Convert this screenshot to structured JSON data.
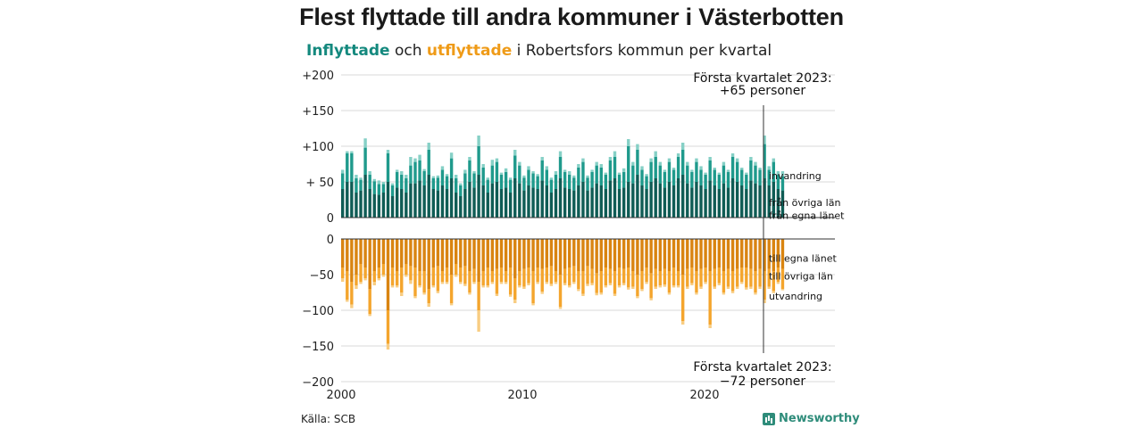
{
  "title": "Flest flyttade till andra kommuner i Västerbotten",
  "subtitle": {
    "in": "Inflyttade",
    "and": "och",
    "out": "utflyttade",
    "rest": "i Robertsfors kommun per kvartal"
  },
  "source": "Källa: SCB",
  "brand": "Newsworthy",
  "colors": {
    "in_same_county": "#0f5c55",
    "in_other_county": "#1f9a8c",
    "in_immigration": "#86d0c6",
    "out_same_county": "#d98411",
    "out_other_county": "#f4a52d",
    "out_emigration": "#f8cd82",
    "grid": "#d8d8d8",
    "axis": "#333333"
  },
  "chart_data": {
    "type": "bar",
    "stacked": true,
    "x_start": "2000 Q1",
    "x_end": "2023 Q1",
    "x_ticks": [
      "2000",
      "2010",
      "2020"
    ],
    "top": {
      "ylim": [
        0,
        200
      ],
      "y_ticks": [
        "0",
        "+ 50",
        "+100",
        "+150",
        "+200"
      ],
      "series": [
        {
          "name": "från egna länet",
          "values": [
            40,
            50,
            50,
            35,
            38,
            60,
            40,
            33,
            32,
            35,
            50,
            30,
            42,
            40,
            35,
            48,
            48,
            52,
            45,
            60,
            40,
            38,
            45,
            40,
            55,
            35,
            30,
            40,
            50,
            42,
            60,
            45,
            35,
            48,
            50,
            40,
            42,
            35,
            55,
            48,
            38,
            45,
            42,
            40,
            52,
            45,
            35,
            40,
            55,
            42,
            40,
            38,
            45,
            50,
            38,
            42,
            48,
            45,
            40,
            52,
            55,
            40,
            42,
            50,
            48,
            60,
            45,
            40,
            50,
            55,
            48,
            42,
            50,
            45,
            55,
            60,
            48,
            42,
            50,
            45,
            40,
            52,
            45,
            40,
            48,
            42,
            55,
            50,
            45,
            40,
            52,
            48,
            45,
            55,
            45,
            50,
            40,
            38
          ]
        },
        {
          "name": "från övriga län",
          "values": [
            22,
            40,
            40,
            20,
            15,
            38,
            20,
            18,
            15,
            12,
            40,
            15,
            22,
            20,
            20,
            25,
            30,
            28,
            20,
            35,
            15,
            18,
            22,
            18,
            28,
            20,
            15,
            22,
            30,
            20,
            40,
            25,
            18,
            25,
            28,
            20,
            22,
            18,
            32,
            25,
            18,
            22,
            20,
            18,
            28,
            22,
            18,
            20,
            30,
            22,
            20,
            18,
            25,
            28,
            18,
            22,
            25,
            25,
            20,
            28,
            30,
            20,
            22,
            50,
            25,
            35,
            22,
            18,
            28,
            30,
            25,
            22,
            28,
            22,
            30,
            35,
            25,
            22,
            28,
            22,
            20,
            28,
            22,
            20,
            25,
            22,
            30,
            28,
            22,
            20,
            28,
            25,
            22,
            48,
            22,
            28,
            20,
            20
          ]
        },
        {
          "name": "invandring",
          "values": [
            5,
            3,
            3,
            5,
            3,
            13,
            5,
            3,
            5,
            3,
            5,
            3,
            3,
            5,
            5,
            12,
            5,
            8,
            3,
            10,
            3,
            3,
            5,
            3,
            8,
            5,
            3,
            5,
            5,
            3,
            15,
            5,
            3,
            8,
            5,
            3,
            5,
            3,
            8,
            5,
            3,
            5,
            3,
            3,
            5,
            5,
            3,
            5,
            8,
            3,
            5,
            3,
            5,
            5,
            3,
            3,
            5,
            5,
            3,
            5,
            8,
            3,
            5,
            10,
            5,
            8,
            5,
            3,
            5,
            8,
            5,
            3,
            5,
            3,
            5,
            10,
            5,
            3,
            5,
            5,
            3,
            5,
            3,
            3,
            5,
            3,
            5,
            5,
            3,
            3,
            5,
            5,
            3,
            12,
            5,
            5,
            5,
            7
          ]
        }
      ],
      "labels": [
        {
          "text": "invandring",
          "value": 59
        },
        {
          "text": "från övriga län",
          "value": 21
        },
        {
          "text": "från egna länet",
          "value": 3
        }
      ]
    },
    "bottom": {
      "ylim": [
        -200,
        0
      ],
      "y_ticks": [
        "0",
        "−50",
        "−100",
        "−150",
        "−200"
      ],
      "series": [
        {
          "name": "till egna länet",
          "values": [
            -40,
            -45,
            -60,
            -50,
            -35,
            -40,
            -70,
            -45,
            -40,
            -35,
            -100,
            -40,
            -45,
            -40,
            -35,
            -38,
            -40,
            -45,
            -45,
            -70,
            -40,
            -38,
            -45,
            -40,
            -50,
            -35,
            -40,
            -38,
            -45,
            -42,
            -60,
            -45,
            -40,
            -45,
            -42,
            -40,
            -45,
            -40,
            -55,
            -45,
            -42,
            -40,
            -45,
            -40,
            -42,
            -40,
            -38,
            -45,
            -50,
            -42,
            -40,
            -38,
            -45,
            -45,
            -38,
            -42,
            -48,
            -45,
            -40,
            -42,
            -45,
            -40,
            -42,
            -40,
            -45,
            -50,
            -45,
            -40,
            -48,
            -42,
            -45,
            -42,
            -45,
            -40,
            -45,
            -50,
            -42,
            -40,
            -45,
            -42,
            -40,
            -45,
            -42,
            -40,
            -45,
            -42,
            -45,
            -42,
            -40,
            -40,
            -42,
            -45,
            -42,
            -45,
            -42,
            -45,
            -40,
            -42
          ]
        },
        {
          "name": "till övriga län",
          "values": [
            -15,
            -40,
            -32,
            -15,
            -25,
            -15,
            -35,
            -15,
            -15,
            -15,
            -47,
            -25,
            -20,
            -35,
            -15,
            -20,
            -40,
            -20,
            -30,
            -20,
            -25,
            -35,
            -15,
            -20,
            -40,
            -15,
            -20,
            -25,
            -30,
            -18,
            -40,
            -20,
            -25,
            -15,
            -35,
            -20,
            -15,
            -38,
            -30,
            -20,
            -25,
            -22,
            -45,
            -20,
            -32,
            -20,
            -25,
            -15,
            -45,
            -20,
            -25,
            -22,
            -25,
            -32,
            -25,
            -20,
            -28,
            -30,
            -25,
            -20,
            -32,
            -25,
            -20,
            -28,
            -22,
            -30,
            -25,
            -20,
            -35,
            -25,
            -20,
            -22,
            -30,
            -25,
            -20,
            -65,
            -25,
            -22,
            -30,
            -25,
            -20,
            -75,
            -25,
            -22,
            -30,
            -25,
            -28,
            -25,
            -20,
            -28,
            -25,
            -30,
            -25,
            -40,
            -25,
            -28,
            -20,
            -28
          ]
        },
        {
          "name": "utvandring",
          "values": [
            -5,
            -3,
            -5,
            -5,
            -3,
            -3,
            -3,
            -5,
            -3,
            -3,
            -8,
            -3,
            -3,
            -5,
            -3,
            -5,
            -3,
            -3,
            -3,
            -5,
            -3,
            -3,
            -3,
            -3,
            -3,
            -3,
            -3,
            -3,
            -3,
            -3,
            -30,
            -3,
            -3,
            -3,
            -3,
            -3,
            -3,
            -3,
            -5,
            -3,
            -3,
            -3,
            -3,
            -3,
            -3,
            -3,
            -3,
            -3,
            -3,
            -3,
            -3,
            -3,
            -3,
            -3,
            -3,
            -3,
            -3,
            -3,
            -3,
            -3,
            -3,
            -3,
            -3,
            -3,
            -3,
            -3,
            -3,
            -3,
            -3,
            -3,
            -3,
            -3,
            -3,
            -3,
            -3,
            -5,
            -3,
            -3,
            -3,
            -3,
            -3,
            -5,
            -3,
            -3,
            -3,
            -3,
            -3,
            -3,
            -3,
            -3,
            -3,
            -3,
            -3,
            -5,
            -3,
            -3,
            -3,
            -2
          ]
        }
      ],
      "labels": [
        {
          "text": "till egna länet",
          "value": -27
        },
        {
          "text": "till övriga län",
          "value": -52
        },
        {
          "text": "utvandring",
          "value": -80
        }
      ]
    },
    "annotations": [
      {
        "line1": "Första kvartalet 2023:",
        "line2": "+65 personer"
      },
      {
        "line1": "Första kvartalet 2023:",
        "line2": "−72 personer"
      }
    ]
  }
}
